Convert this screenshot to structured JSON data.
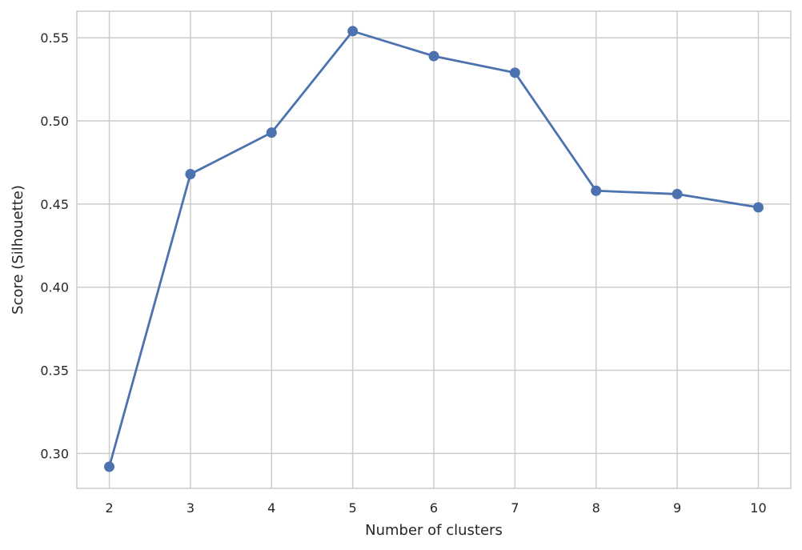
{
  "chart_data": {
    "type": "line",
    "title": "",
    "xlabel": "Number of clusters",
    "ylabel": "Score (Silhouette)",
    "x": [
      2,
      3,
      4,
      5,
      6,
      7,
      8,
      9,
      10
    ],
    "xticks": [
      "2",
      "3",
      "4",
      "5",
      "6",
      "7",
      "8",
      "9",
      "10"
    ],
    "yticks": [
      "0.30",
      "0.35",
      "0.40",
      "0.45",
      "0.50",
      "0.55"
    ],
    "ylim": [
      0.279,
      0.566
    ],
    "xlim": [
      1.6,
      10.4
    ],
    "grid": true,
    "series": [
      {
        "color": "#4c72b0",
        "marker": "circle",
        "values": [
          0.292,
          0.468,
          0.493,
          0.554,
          0.539,
          0.529,
          0.458,
          0.456,
          0.448
        ]
      }
    ]
  }
}
